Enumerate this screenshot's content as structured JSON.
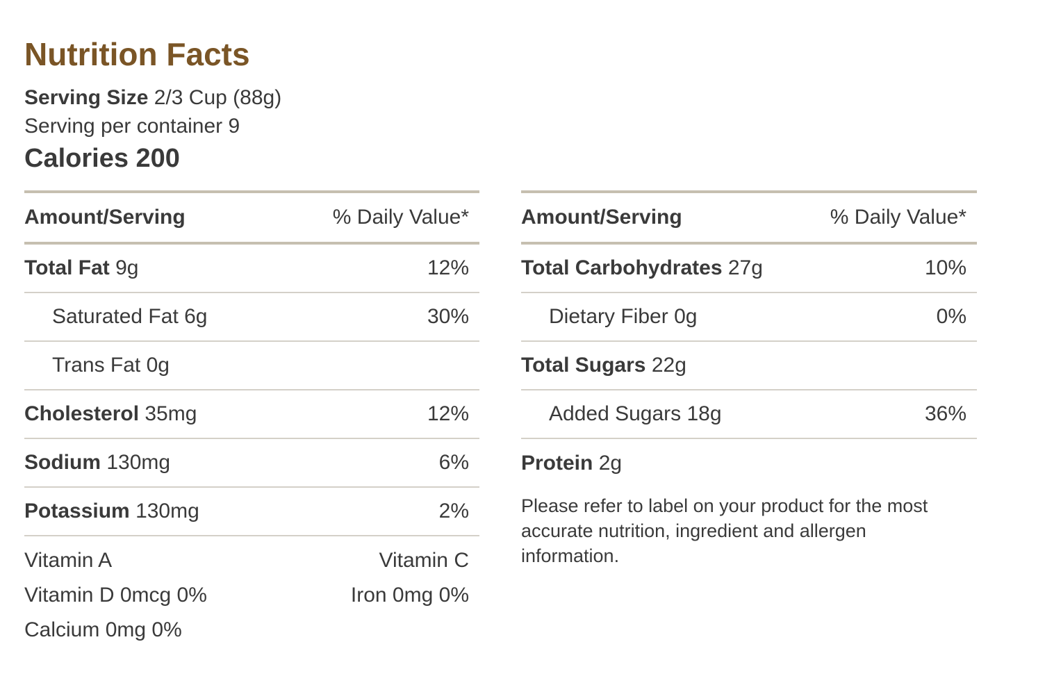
{
  "title": "Nutrition Facts",
  "serving": {
    "size_label": "Serving Size",
    "size_value": "2/3 Cup (88g)",
    "per_container": "Serving per container 9"
  },
  "calories": "Calories 200",
  "header": {
    "amount": "Amount/Serving",
    "dv": "% Daily Value*"
  },
  "left_rows": [
    {
      "name": "Total Fat",
      "amount": "9g",
      "dv": "12%"
    },
    {
      "name": "Saturated Fat",
      "amount": "6g",
      "dv": "30%"
    },
    {
      "name": "Trans Fat",
      "amount": "0g",
      "dv": ""
    },
    {
      "name": "Cholesterol",
      "amount": "35mg",
      "dv": "12%"
    },
    {
      "name": "Sodium",
      "amount": "130mg",
      "dv": "6%"
    },
    {
      "name": "Potassium",
      "amount": "130mg",
      "dv": "2%"
    }
  ],
  "vitamins": {
    "vitamin_a": "Vitamin A",
    "vitamin_c": "Vitamin C",
    "vitamin_d": "Vitamin D 0mcg 0%",
    "iron": "Iron 0mg 0%",
    "calcium": "Calcium 0mg 0%"
  },
  "right_rows": [
    {
      "name": "Total Carbohydrates",
      "amount": "27g",
      "dv": "10%"
    },
    {
      "name": "Dietary Fiber",
      "amount": "0g",
      "dv": "0%"
    },
    {
      "name": "Total Sugars",
      "amount": "22g",
      "dv": ""
    },
    {
      "name": "Added Sugars",
      "amount": "18g",
      "dv": "36%"
    },
    {
      "name": "Protein",
      "amount": "2g",
      "dv": ""
    }
  ],
  "note": "Please refer to label on your product for the most accurate nutrition, ingredient and allergen information."
}
